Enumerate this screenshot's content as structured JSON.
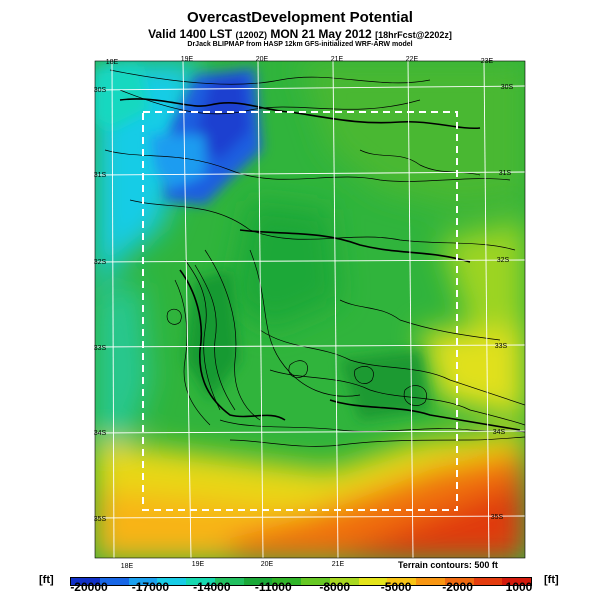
{
  "title": "OvercastDevelopment Potential",
  "subtitle": {
    "valid": "Valid 1400 LST",
    "zulu": "(1200Z)",
    "date": "MON 21 May 2012",
    "forecast": "[18hrFcst@2202z]"
  },
  "credit": "DrJack BLIPMAP from HASP 12km GFS-initialized WRF-ARW model",
  "lon_labels_top": [
    "18E",
    "19E",
    "20E",
    "21E",
    "22E",
    "23E"
  ],
  "lon_labels_bottom": [
    "18E",
    "19E",
    "20E",
    "21E"
  ],
  "lat_labels_left": [
    "30S",
    "31S",
    "32S",
    "33S",
    "34S",
    "35S"
  ],
  "lat_labels_right": [
    "30S",
    "31S",
    "32S",
    "33S",
    "34S",
    "35S"
  ],
  "terrain_note": "Terrain contours: 500 ft",
  "unit": "[ft]",
  "colorbar": {
    "ticks": [
      "-20000",
      "-17000",
      "-14000",
      "-11000",
      "-8000",
      "-5000",
      "-2000",
      "1000"
    ],
    "colors": [
      "#1030c8",
      "#1866e6",
      "#1aa0f0",
      "#18cce6",
      "#16d8b0",
      "#22c060",
      "#1aa838",
      "#30b428",
      "#66c824",
      "#a8d820",
      "#e4e41a",
      "#f8c414",
      "#f89612",
      "#f06a10",
      "#e43c0e",
      "#d41a0c"
    ]
  },
  "colors": {
    "ocean_blue": "#1aa0f0",
    "land_green": "#22a83a",
    "dry_orange": "#f07010",
    "grid": "#ffffff",
    "box": "#ffffff"
  }
}
